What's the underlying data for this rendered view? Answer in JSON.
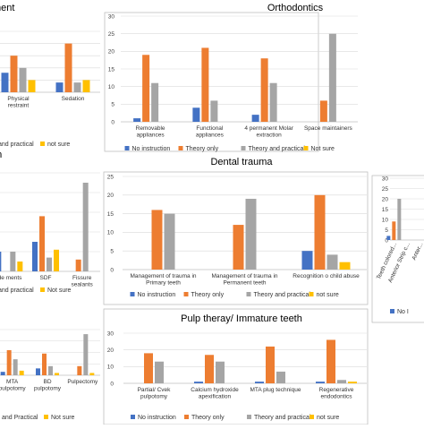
{
  "colors": {
    "no_instruction": "#4472c4",
    "theory_only": "#ed7d31",
    "theory_practical": "#a5a5a5",
    "not_sure": "#ffc000"
  },
  "chart_data": [
    {
      "id": "behavior",
      "type": "bar",
      "title": "ment",
      "categories": [
        "Physical restraint",
        "Sedation"
      ],
      "yticks": [
        0,
        5,
        10,
        15,
        20,
        25
      ],
      "ylim": [
        0,
        25
      ],
      "ytick_labels": false,
      "series": [
        {
          "name": "No instruction",
          "values": [
            8,
            4
          ]
        },
        {
          "name": "Theory only",
          "values": [
            15,
            20
          ]
        },
        {
          "name": "Theory and practical",
          "values": [
            10,
            4
          ]
        },
        {
          "name": "Not sure",
          "values": [
            5,
            5
          ]
        }
      ],
      "legend": [
        "and practical",
        "not sure"
      ]
    },
    {
      "id": "orthodontics",
      "type": "bar",
      "title": "Orthodontics",
      "categories": [
        "Removable appliances",
        "Functional appliances",
        "4 permanent Molar extraction",
        "Space maintainers"
      ],
      "yticks": [
        0,
        5,
        10,
        15,
        20,
        25,
        30
      ],
      "ylim": [
        0,
        30
      ],
      "series": [
        {
          "name": "No instruction",
          "values": [
            1,
            4,
            2,
            0
          ]
        },
        {
          "name": "Theory only",
          "values": [
            19,
            21,
            18,
            6
          ]
        },
        {
          "name": "Theory and practical",
          "values": [
            11,
            6,
            11,
            25
          ]
        },
        {
          "name": "Not sure",
          "values": [
            0,
            0,
            0,
            0
          ]
        }
      ],
      "legend": [
        "No instruction",
        "Theory only",
        "Theory and practical",
        "Not sure"
      ]
    },
    {
      "id": "prevention",
      "type": "bar",
      "title": "on",
      "categories": [
        "ide ments",
        "SDF",
        "Fissure sealants"
      ],
      "yticks": [
        0,
        5,
        10,
        15,
        20,
        25
      ],
      "ylim": [
        0,
        25
      ],
      "ytick_labels": false,
      "series": [
        {
          "name": "No instruction",
          "values": [
            5,
            7.5,
            0
          ]
        },
        {
          "name": "Theory only",
          "values": [
            0,
            14,
            3
          ]
        },
        {
          "name": "Theory and practical",
          "values": [
            5,
            3.5,
            22.5
          ]
        },
        {
          "name": "Not sure",
          "values": [
            2.5,
            5.5,
            0
          ]
        }
      ],
      "legend": [
        "and practical",
        "Not sure"
      ]
    },
    {
      "id": "trauma",
      "type": "bar",
      "title": "Dental trauma",
      "categories": [
        "Management of trauma in Primary teeth",
        "Management of trauma in Permanent teeth",
        "Recognition o child abuse"
      ],
      "yticks": [
        0,
        5,
        10,
        15,
        20,
        25
      ],
      "ylim": [
        0,
        25
      ],
      "series": [
        {
          "name": "No instruction",
          "values": [
            0,
            0,
            5
          ]
        },
        {
          "name": "Theory only",
          "values": [
            16,
            12,
            20
          ]
        },
        {
          "name": "Theory and practical",
          "values": [
            15,
            19,
            4
          ]
        },
        {
          "name": "Not sure",
          "values": [
            0,
            0,
            2
          ]
        }
      ],
      "legend": [
        "No instruction",
        "Theory only",
        "Theory and practical",
        "not sure"
      ]
    },
    {
      "id": "restorative",
      "type": "bar",
      "title": "",
      "categories": [
        "Teeth colored...",
        "Anterior Strip c...",
        "Anter..."
      ],
      "yticks": [
        0,
        5,
        10,
        15,
        20,
        25,
        30
      ],
      "ylim": [
        0,
        30
      ],
      "series": [
        {
          "name": "No instruction",
          "values": [
            2,
            0,
            0
          ]
        },
        {
          "name": "Theory only",
          "values": [
            9,
            0,
            0
          ]
        },
        {
          "name": "Theory and practical",
          "values": [
            20,
            0,
            0
          ]
        },
        {
          "name": "Not sure",
          "values": [
            0,
            0,
            0
          ]
        }
      ],
      "legend": [
        "No I"
      ]
    },
    {
      "id": "pulp_primary",
      "type": "bar",
      "title": "y",
      "categories": [
        "MTA pulpotomy",
        "BD pulpotomy",
        "Pulpectomy"
      ],
      "yticks": [
        0,
        10,
        20,
        30,
        40
      ],
      "ylim": [
        0,
        40
      ],
      "ytick_labels": false,
      "series": [
        {
          "name": "No instruction",
          "values": [
            3,
            6,
            0
          ]
        },
        {
          "name": "Theory only",
          "values": [
            22,
            19,
            8
          ]
        },
        {
          "name": "Theory and practical",
          "values": [
            14,
            8,
            36
          ]
        },
        {
          "name": "Not sure",
          "values": [
            4,
            2,
            2
          ]
        }
      ],
      "legend": [
        "and Practical",
        "Not sure"
      ]
    },
    {
      "id": "pulp_immature",
      "type": "bar",
      "title": "Pulp theray/ Immature teeth",
      "categories": [
        "Partial/ Cvek pulpotomy",
        "Calcium hydroxide apexification",
        "MTA plug technique",
        "Regenerative endodontics"
      ],
      "yticks": [
        0,
        10,
        20,
        30
      ],
      "ylim": [
        0,
        30
      ],
      "series": [
        {
          "name": "No instruction",
          "values": [
            0,
            1,
            1,
            1
          ]
        },
        {
          "name": "Theory only",
          "values": [
            18,
            17,
            22,
            26
          ]
        },
        {
          "name": "Theory and practical",
          "values": [
            13,
            13,
            7,
            2
          ]
        },
        {
          "name": "Not sure",
          "values": [
            0,
            0,
            0,
            1
          ]
        }
      ],
      "legend": [
        "No instruction",
        "Theory only",
        "Theory and practical",
        "not sure"
      ]
    }
  ]
}
